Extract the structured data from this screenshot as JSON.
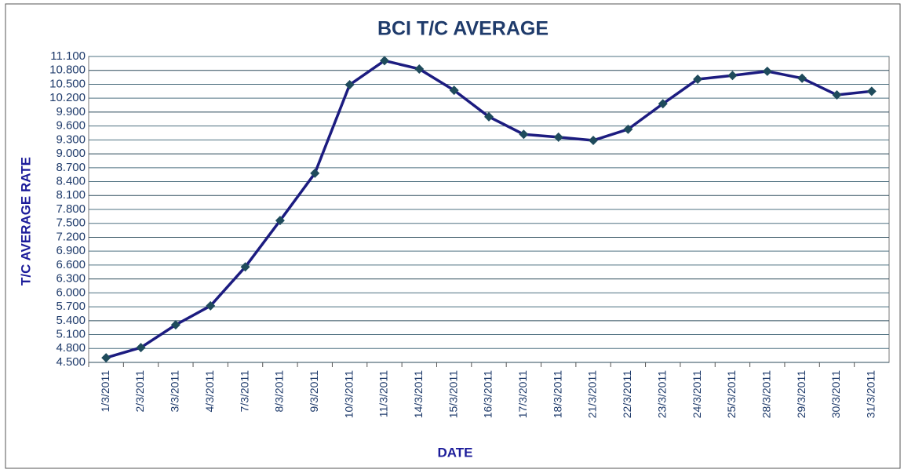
{
  "chart_data": {
    "type": "line",
    "title": "BCI T/C AVERAGE",
    "x_label": "DATE",
    "y_label": "T/C AVERAGE  RATE",
    "categories": [
      "1/3/2011",
      "2/3/2011",
      "3/3/2011",
      "4/3/2011",
      "7/3/2011",
      "8/3/2011",
      "9/3/2011",
      "10/3/2011",
      "11/3/2011",
      "14/3/2011",
      "15/3/2011",
      "16/3/2011",
      "17/3/2011",
      "18/3/2011",
      "21/3/2011",
      "22/3/2011",
      "23/3/2011",
      "24/3/2011",
      "25/3/2011",
      "28/3/2011",
      "29/3/2011",
      "30/3/2011",
      "31/3/2011"
    ],
    "series": [
      {
        "name": "BCI T/C AVERAGE",
        "color": "#1c1c80",
        "marker_color": "#1f4b5c",
        "values": [
          4600,
          4820,
          5310,
          5720,
          6560,
          7560,
          8580,
          10490,
          11010,
          10830,
          10370,
          9800,
          9420,
          9360,
          9290,
          9530,
          10080,
          10610,
          10690,
          10780,
          10630,
          10270,
          10350
        ]
      }
    ],
    "ylim": [
      4500,
      11100
    ],
    "yticks": [
      {
        "value": 4500,
        "label": "4.500"
      },
      {
        "value": 4800,
        "label": "4.800"
      },
      {
        "value": 5100,
        "label": "5.100"
      },
      {
        "value": 5400,
        "label": "5.400"
      },
      {
        "value": 5700,
        "label": "5.700"
      },
      {
        "value": 6000,
        "label": "6.000"
      },
      {
        "value": 6300,
        "label": "6.300"
      },
      {
        "value": 6600,
        "label": "6.600"
      },
      {
        "value": 6900,
        "label": "6.900"
      },
      {
        "value": 7200,
        "label": "7.200"
      },
      {
        "value": 7500,
        "label": "7.500"
      },
      {
        "value": 7800,
        "label": "7.800"
      },
      {
        "value": 8100,
        "label": "8.100"
      },
      {
        "value": 8400,
        "label": "8.400"
      },
      {
        "value": 8700,
        "label": "8.700"
      },
      {
        "value": 9000,
        "label": "9.000"
      },
      {
        "value": 9300,
        "label": "9.300"
      },
      {
        "value": 9600,
        "label": "9.600"
      },
      {
        "value": 9900,
        "label": "9.900"
      },
      {
        "value": 10200,
        "label": "10.200"
      },
      {
        "value": 10500,
        "label": "10.500"
      },
      {
        "value": 10800,
        "label": "10.800"
      },
      {
        "value": 11100,
        "label": "11.100"
      }
    ],
    "grid": true
  }
}
